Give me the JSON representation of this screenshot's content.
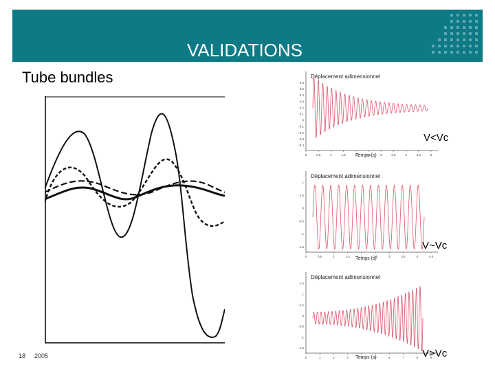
{
  "header": {
    "title": "VALIDATIONS",
    "banner_color": "#0d7a86"
  },
  "subtitle": "Tube bundles",
  "right_plots": [
    {
      "title": "Déplacement adimensionnel",
      "xlabel": "Temps (s)",
      "yticks": [
        "0.6",
        "0.5",
        "0.4",
        "0.3",
        "0.2",
        "0.1",
        "0",
        "-0.1",
        "-0.2",
        "-0.3",
        "-0.4"
      ],
      "xticks": [
        "0",
        "0.5",
        "1",
        "1.5",
        "2",
        "2.5",
        "3",
        "3.5",
        "4",
        "4.5",
        "5"
      ],
      "label": "V<Vc",
      "behavior": "decaying"
    },
    {
      "title": "Déplacement adimensionnel",
      "xlabel": "Temps (s)",
      "yticks": [
        "1",
        "0.5",
        "0",
        "-0.5",
        "-1",
        "-1.5"
      ],
      "xticks": [
        "0",
        "0.5",
        "1",
        "1.5",
        "2",
        "2.5",
        "3",
        "3.5",
        "4",
        "4.5"
      ],
      "label": "V~Vc",
      "behavior": "constant"
    },
    {
      "title": "Déplacement adimensionnel",
      "xlabel": "Temps (s)",
      "yticks": [
        "1.5",
        "1",
        "0.5",
        "0",
        "-0.5",
        "-1",
        "-1.5"
      ],
      "xticks": [
        "0",
        "1",
        "2",
        "3",
        "4",
        "5",
        "6",
        "7",
        "8",
        "9"
      ],
      "label": "V>Vc",
      "behavior": "growing"
    }
  ],
  "footer": {
    "page": "18",
    "year": "2005"
  },
  "colors": {
    "signal": "#d9556b",
    "curve": "#111111"
  }
}
